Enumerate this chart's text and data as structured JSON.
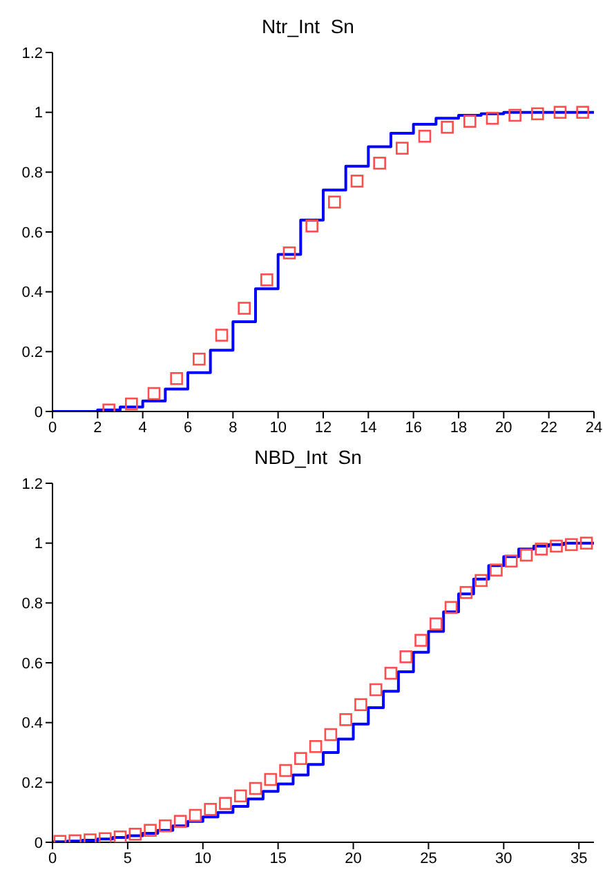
{
  "chart_data": [
    {
      "type": "step",
      "title": "Ntr_Int  Sn",
      "xlim": [
        0,
        24
      ],
      "xticks": [
        0,
        2,
        4,
        6,
        8,
        10,
        12,
        14,
        16,
        18,
        20,
        22,
        24
      ],
      "ylim": [
        0,
        1.2
      ],
      "yticks": [
        0,
        0.2,
        0.4,
        0.6,
        0.8,
        1,
        1.2
      ],
      "grid": false,
      "legend": false,
      "series": [
        {
          "color": "#0000ff",
          "marker": "none",
          "x": [
            0,
            1,
            2,
            3,
            4,
            5,
            6,
            7,
            8,
            9,
            10,
            11,
            12,
            13,
            14,
            15,
            16,
            17,
            18,
            19,
            20,
            21,
            22,
            23,
            24
          ],
          "values": [
            0,
            0,
            0.005,
            0.015,
            0.035,
            0.075,
            0.13,
            0.205,
            0.3,
            0.41,
            0.525,
            0.64,
            0.74,
            0.82,
            0.885,
            0.93,
            0.96,
            0.98,
            0.99,
            0.995,
            1,
            1,
            1,
            1,
            1
          ]
        },
        {
          "type": "scatter",
          "color": "#ff4d4d",
          "marker": "square",
          "x": [
            2.5,
            3.5,
            4.5,
            5.5,
            6.5,
            7.5,
            8.5,
            9.5,
            10.5,
            11.5,
            12.5,
            13.5,
            14.5,
            15.5,
            16.5,
            17.5,
            18.5,
            19.5,
            20.5,
            21.5,
            22.5,
            23.5
          ],
          "values": [
            0.005,
            0.025,
            0.06,
            0.11,
            0.175,
            0.255,
            0.345,
            0.44,
            0.53,
            0.62,
            0.7,
            0.77,
            0.83,
            0.88,
            0.92,
            0.95,
            0.97,
            0.98,
            0.99,
            0.995,
            1,
            1
          ]
        }
      ]
    },
    {
      "type": "step",
      "title": "NBD_Int  Sn",
      "xlim": [
        0,
        36
      ],
      "xticks": [
        0,
        5,
        10,
        15,
        20,
        25,
        30,
        35
      ],
      "ylim": [
        0,
        1.2
      ],
      "yticks": [
        0,
        0.2,
        0.4,
        0.6,
        0.8,
        1,
        1.2
      ],
      "grid": false,
      "legend": false,
      "series": [
        {
          "color": "#0000ff",
          "marker": "none",
          "x": [
            0,
            1,
            2,
            3,
            4,
            5,
            6,
            7,
            8,
            9,
            10,
            11,
            12,
            13,
            14,
            15,
            16,
            17,
            18,
            19,
            20,
            21,
            22,
            23,
            24,
            25,
            26,
            27,
            28,
            29,
            30,
            31,
            32,
            33,
            34,
            35,
            36
          ],
          "values": [
            0.002,
            0.004,
            0.007,
            0.011,
            0.016,
            0.022,
            0.03,
            0.04,
            0.055,
            0.07,
            0.085,
            0.1,
            0.12,
            0.145,
            0.17,
            0.195,
            0.225,
            0.26,
            0.3,
            0.345,
            0.395,
            0.45,
            0.505,
            0.57,
            0.635,
            0.705,
            0.77,
            0.83,
            0.88,
            0.925,
            0.955,
            0.98,
            0.99,
            0.995,
            1,
            1,
            1
          ]
        },
        {
          "type": "scatter",
          "color": "#ff4d4d",
          "marker": "square",
          "x": [
            0.5,
            1.5,
            2.5,
            3.5,
            4.5,
            5.5,
            6.5,
            7.5,
            8.5,
            9.5,
            10.5,
            11.5,
            12.5,
            13.5,
            14.5,
            15.5,
            16.5,
            17.5,
            18.5,
            19.5,
            20.5,
            21.5,
            22.5,
            23.5,
            24.5,
            25.5,
            26.5,
            27.5,
            28.5,
            29.5,
            30.5,
            31.5,
            32.5,
            33.5,
            34.5,
            35.5
          ],
          "values": [
            0.003,
            0.005,
            0.008,
            0.012,
            0.018,
            0.027,
            0.04,
            0.055,
            0.07,
            0.09,
            0.11,
            0.13,
            0.155,
            0.18,
            0.21,
            0.24,
            0.28,
            0.32,
            0.36,
            0.41,
            0.46,
            0.51,
            0.565,
            0.62,
            0.675,
            0.73,
            0.785,
            0.835,
            0.875,
            0.91,
            0.94,
            0.96,
            0.98,
            0.99,
            0.995,
            1
          ]
        }
      ]
    }
  ]
}
